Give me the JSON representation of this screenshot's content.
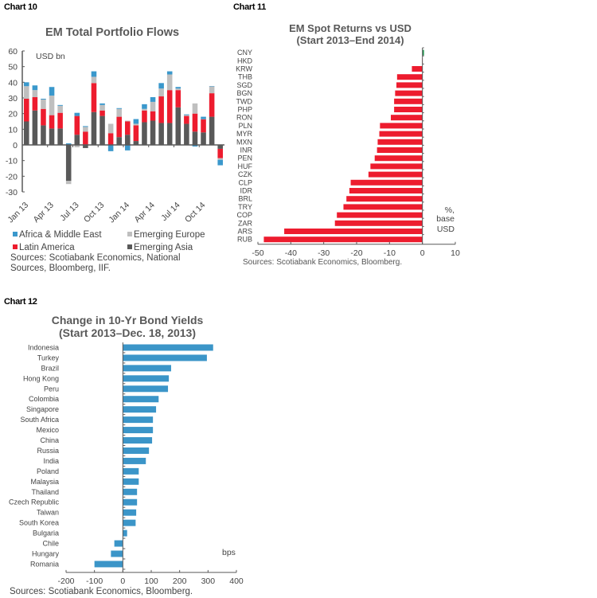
{
  "chart_labels": [
    "Chart 10",
    "Chart 11",
    "Chart 12"
  ],
  "colors": {
    "africa": "#3a98cc",
    "europe": "#bfbfbf",
    "latam": "#ed1c2e",
    "asia": "#595959",
    "em_red": "#ed1c2e",
    "em_green": "#2e9e5b",
    "yield_blue": "#3b95c8",
    "axis": "#595959"
  },
  "chart_data": [
    {
      "type": "bar",
      "stacked": true,
      "title": "EM Total Portfolio Flows",
      "unit_label": "USD bn",
      "xlabel": "",
      "ylabel": "",
      "ylim": [
        -30,
        60
      ],
      "yticks": [
        60,
        50,
        40,
        30,
        20,
        10,
        0,
        -10,
        -20,
        -30
      ],
      "xtick_labels": [
        "Jan 13",
        "Apr 13",
        "Jul 13",
        "Oct 13",
        "Jan 14",
        "Apr 14",
        "Jul 14",
        "Oct 14"
      ],
      "categories": [
        "Jan 13",
        "Feb 13",
        "Mar 13",
        "Apr 13",
        "May 13",
        "Jun 13",
        "Jul 13",
        "Aug 13",
        "Sep 13",
        "Oct 13",
        "Nov 13",
        "Dec 13",
        "Jan 14",
        "Feb 14",
        "Mar 14",
        "Apr 14",
        "May 14",
        "Jun 14",
        "Jul 14",
        "Aug 14",
        "Sep 14",
        "Oct 14",
        "Nov 14",
        "Dec 14"
      ],
      "series": [
        {
          "name": "Emerging Asia",
          "key": "asia",
          "values": [
            15,
            22,
            12.5,
            10.5,
            10.5,
            -23,
            6.5,
            -2,
            21,
            18.5,
            0,
            5,
            6.5,
            2.5,
            14.5,
            15.5,
            14,
            14,
            24,
            13.5,
            8.5,
            8,
            18,
            -2.5
          ]
        },
        {
          "name": "Latin America",
          "key": "latam",
          "values": [
            14.5,
            8.5,
            10.5,
            8.5,
            10,
            0,
            12,
            8.5,
            18.5,
            3.5,
            7.5,
            13,
            8.5,
            10,
            7.5,
            6,
            17,
            21,
            11,
            5,
            11.5,
            8.5,
            15,
            -6
          ]
        },
        {
          "name": "Emerging Europe",
          "key": "europe",
          "values": [
            8,
            4.5,
            6,
            12.5,
            4.5,
            -2,
            -1.5,
            3,
            4,
            3.5,
            6,
            5,
            0.5,
            1,
            1,
            6,
            5,
            10,
            1,
            0.5,
            6.5,
            0,
            4.5,
            -1
          ]
        },
        {
          "name": "Africa & Middle East",
          "key": "africa",
          "values": [
            2.5,
            3,
            0.5,
            5.5,
            0.5,
            1,
            2,
            0.5,
            3.5,
            1,
            -4,
            0.5,
            -3.5,
            3,
            3,
            3,
            3.5,
            2,
            1,
            0.5,
            -1,
            1.5,
            0,
            -3.5
          ]
        }
      ],
      "legend": [
        "Africa & Middle East",
        "Emerging Europe",
        "Latin America",
        "Emerging Asia"
      ],
      "legend_position": "bottom",
      "source": [
        "Sources: Scotiabank Economics, National",
        "Sources, Bloomberg, IIF."
      ]
    },
    {
      "type": "bar",
      "orientation": "horizontal",
      "title": [
        "EM Spot Returns vs USD",
        "(Start 2013–End 2014)"
      ],
      "unit_label": [
        "%,",
        "base",
        "USD"
      ],
      "xlim": [
        -50,
        10
      ],
      "xticks": [
        -50,
        -40,
        -30,
        -20,
        -10,
        0,
        10
      ],
      "categories": [
        "CNY",
        "HKD",
        "KRW",
        "THB",
        "SGD",
        "BGN",
        "TWD",
        "PHP",
        "RON",
        "PLN",
        "MYR",
        "MXN",
        "INR",
        "PEN",
        "HUF",
        "CZK",
        "CLP",
        "IDR",
        "BRL",
        "TRY",
        "COP",
        "ZAR",
        "ARS",
        "RUB"
      ],
      "values": [
        0.5,
        -0.1,
        -3.2,
        -7.7,
        -7.9,
        -8.3,
        -8.6,
        -8.6,
        -9.6,
        -12.9,
        -13.1,
        -13.6,
        -13.8,
        -14.5,
        -15.8,
        -16.4,
        -21.8,
        -22.2,
        -23.1,
        -24.0,
        -26.0,
        -26.6,
        -42.0,
        -48.2
      ],
      "source": "Sources: Scotiabank Economics, Bloomberg."
    },
    {
      "type": "bar",
      "orientation": "horizontal",
      "title": [
        "Change in 10-Yr Bond Yields",
        "(Start 2013–Dec. 18, 2013)"
      ],
      "unit_label": "bps",
      "xlim": [
        -200,
        400
      ],
      "xticks": [
        -200,
        -100,
        0,
        100,
        200,
        300,
        400
      ],
      "categories": [
        "Indonesia",
        "Turkey",
        "Brazil",
        "Hong Kong",
        "Peru",
        "Colombia",
        "Singapore",
        "South Africa",
        "Mexico",
        "China",
        "Russia",
        "India",
        "Poland",
        "Malaysia",
        "Thailand",
        "Czech Republic",
        "Taiwan",
        "South Korea",
        "Bulgaria",
        "Chile",
        "Hungary",
        "Romania"
      ],
      "values": [
        318,
        296,
        170,
        162,
        159,
        126,
        117,
        106,
        106,
        103,
        92,
        81,
        56,
        56,
        50,
        50,
        47,
        45,
        15,
        -30,
        -42,
        -100
      ],
      "source": "Sources: Scotiabank Economics, Bloomberg."
    }
  ]
}
